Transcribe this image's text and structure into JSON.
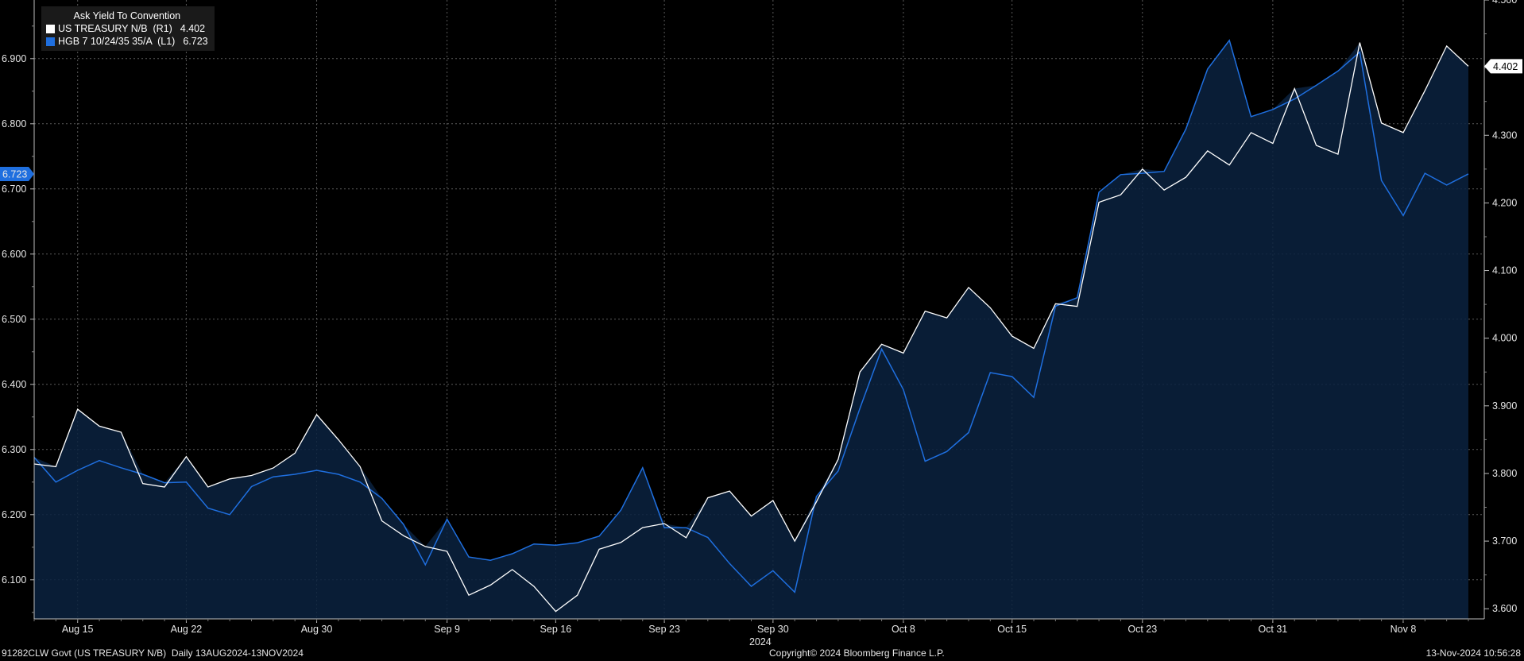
{
  "legend": {
    "title": "Ask Yield To Convention",
    "series": [
      {
        "name": "US TREASURY N/B  (R1)",
        "value": "4.402",
        "color": "#ffffff"
      },
      {
        "name": "HGB 7 10/24/35 35/A  (L1)",
        "value": "6.723",
        "color": "#1f6fdf"
      }
    ]
  },
  "footer": {
    "left": "91282CLW Govt (US TREASURY N/B)  Daily 13AUG2024-13NOV2024",
    "center": "Copyright© 2024 Bloomberg Finance L.P.",
    "right": "13-Nov-2024 10:56:28"
  },
  "chart_data": {
    "type": "line",
    "year_label": "2024",
    "x_tick_labels": [
      "Aug 15",
      "Aug 22",
      "Aug 30",
      "Sep 9",
      "Sep 16",
      "Sep 23",
      "Sep 30",
      "Oct 8",
      "Oct 15",
      "Oct 23",
      "Oct 31",
      "Nov 8"
    ],
    "x_tick_index": [
      2,
      7,
      13,
      19,
      24,
      29,
      34,
      40,
      45,
      51,
      57,
      63
    ],
    "left_axis": {
      "ticks": [
        "6.100",
        "6.200",
        "6.300",
        "6.400",
        "6.500",
        "6.600",
        "6.700",
        "6.800",
        "6.900"
      ],
      "ylim": [
        6.04,
        6.99
      ]
    },
    "right_axis": {
      "ticks": [
        "3.600",
        "3.700",
        "3.800",
        "3.900",
        "4.000",
        "4.100",
        "4.200",
        "4.300",
        "4.400",
        "4.500"
      ],
      "ylim": [
        3.585,
        4.5
      ]
    },
    "last_value_left": "6.723",
    "last_value_right": "4.402",
    "series": [
      {
        "name": "US TREASURY N/B",
        "axis": "right",
        "color": "#ffffff",
        "values": [
          3.814,
          3.81,
          3.895,
          3.87,
          3.861,
          3.785,
          3.78,
          3.825,
          3.78,
          3.792,
          3.797,
          3.808,
          3.83,
          3.887,
          3.85,
          3.81,
          3.73,
          3.708,
          3.692,
          3.685,
          3.62,
          3.635,
          3.658,
          3.633,
          3.596,
          3.62,
          3.688,
          3.698,
          3.72,
          3.726,
          3.705,
          3.764,
          3.774,
          3.737,
          3.76,
          3.7,
          3.758,
          3.821,
          3.95,
          3.991,
          3.978,
          4.04,
          4.03,
          4.075,
          4.045,
          4.003,
          3.985,
          4.051,
          4.047,
          4.201,
          4.212,
          4.25,
          4.219,
          4.238,
          4.277,
          4.256,
          4.304,
          4.288,
          4.369,
          4.285,
          4.272,
          4.437,
          4.318,
          4.304,
          4.366,
          4.432,
          4.402
        ]
      },
      {
        "name": "HGB 7 10/24/35 35/A",
        "axis": "left",
        "color": "#1f6fdf",
        "values": [
          6.288,
          6.25,
          6.268,
          6.283,
          6.272,
          6.262,
          6.249,
          6.25,
          6.21,
          6.2,
          6.243,
          6.258,
          6.262,
          6.268,
          6.262,
          6.25,
          6.225,
          6.185,
          6.123,
          6.193,
          6.135,
          6.13,
          6.14,
          6.155,
          6.153,
          6.157,
          6.167,
          6.207,
          6.272,
          6.18,
          6.18,
          6.165,
          6.125,
          6.09,
          6.114,
          6.081,
          6.228,
          6.267,
          6.363,
          6.454,
          6.392,
          6.282,
          6.297,
          6.326,
          6.418,
          6.412,
          6.38,
          6.52,
          6.533,
          6.695,
          6.722,
          6.724,
          6.727,
          6.792,
          6.884,
          6.928,
          6.811,
          6.822,
          6.838,
          6.859,
          6.881,
          6.91,
          6.713,
          6.659,
          6.724,
          6.706,
          6.723
        ]
      }
    ]
  }
}
